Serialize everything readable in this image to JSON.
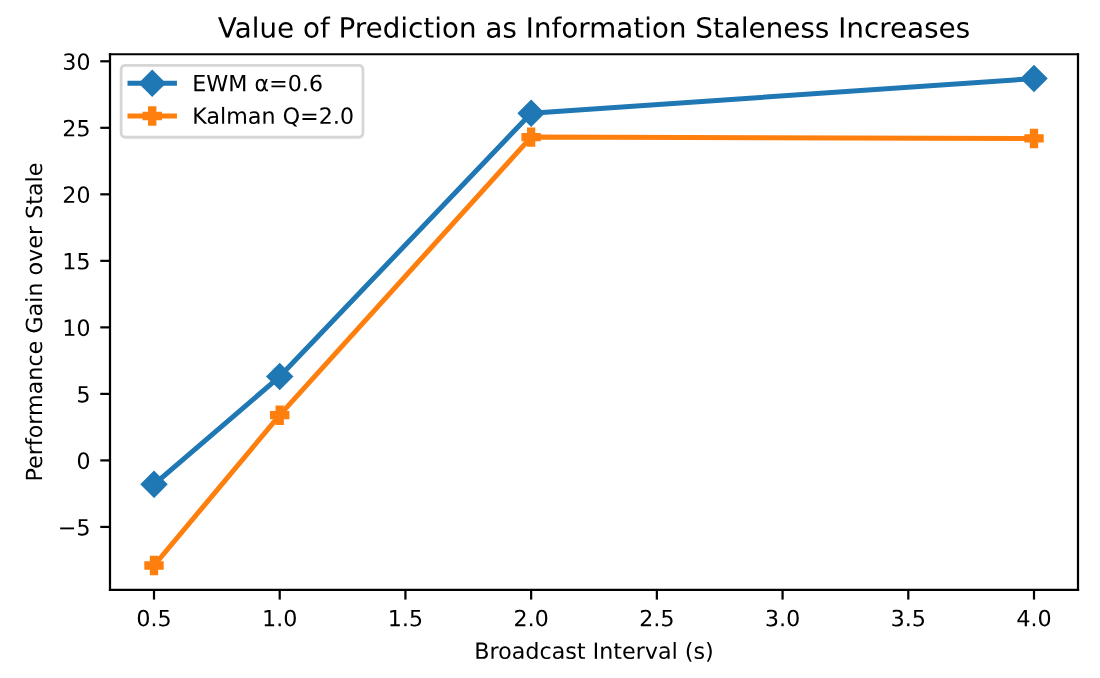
{
  "chart_data": {
    "type": "line",
    "title": "Value of Prediction as Information Staleness Increases",
    "xlabel": "Broadcast Interval (s)",
    "ylabel": "Performance Gain over Stale",
    "x": [
      0.5,
      1.0,
      2.0,
      4.0
    ],
    "series": [
      {
        "name": "EWM α=0.6",
        "color": "#1f77b4",
        "marker": "diamond",
        "values": [
          -1.8,
          6.3,
          26.1,
          28.7
        ]
      },
      {
        "name": "Kalman Q=2.0",
        "color": "#ff7f0e",
        "marker": "cross",
        "values": [
          -7.9,
          3.4,
          24.3,
          24.2
        ]
      }
    ],
    "xlim": [
      0.325,
      4.175
    ],
    "xticks": [
      {
        "value": 0.5,
        "label": "0.5"
      },
      {
        "value": 1.0,
        "label": "1.0"
      },
      {
        "value": 1.5,
        "label": "1.5"
      },
      {
        "value": 2.0,
        "label": "2.0"
      },
      {
        "value": 2.5,
        "label": "2.5"
      },
      {
        "value": 3.0,
        "label": "3.0"
      },
      {
        "value": 3.5,
        "label": "3.5"
      },
      {
        "value": 4.0,
        "label": "4.0"
      }
    ],
    "ylim": [
      -9.73,
      30.53
    ],
    "yticks": [
      {
        "value": -5,
        "label": "−5"
      },
      0,
      5,
      10,
      15,
      20,
      25,
      30
    ],
    "legend": "top left",
    "grid": false,
    "line_style": "solid"
  }
}
